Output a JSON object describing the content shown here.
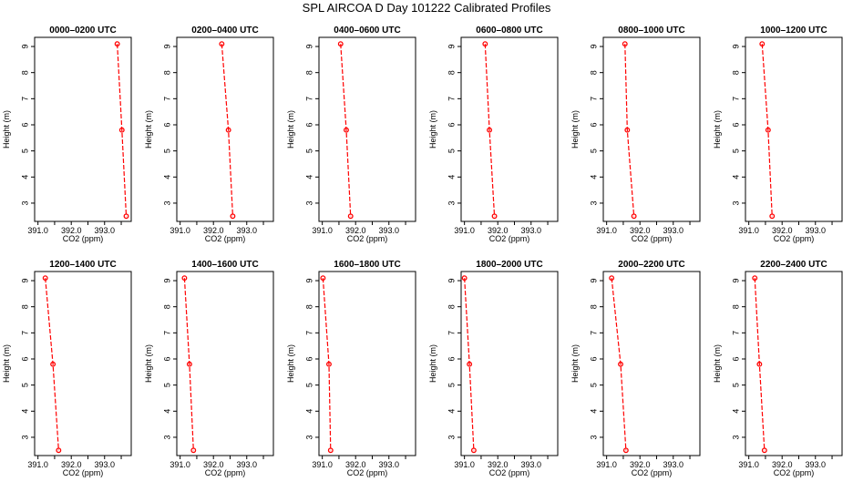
{
  "title": "SPL AIRCOA D  Day 101222  Calibrated Profiles",
  "chart_data": {
    "type": "line",
    "xlabel": "CO2 (ppm)",
    "ylabel": "Height (m)",
    "xlim": [
      390.9,
      393.8
    ],
    "ylim": [
      2.3,
      9.35
    ],
    "x_ticks": [
      391.0,
      391.5,
      392.0,
      392.5,
      393.0,
      393.5
    ],
    "x_tick_labels": [
      "391.0",
      "",
      "392.0",
      "",
      "393.0",
      ""
    ],
    "y_ticks": [
      3,
      4,
      5,
      6,
      7,
      8,
      9
    ],
    "y_tick_labels": [
      "3",
      "4",
      "5",
      "6",
      "7",
      "8",
      "9"
    ],
    "series_color": "#ff0000",
    "panels": [
      {
        "title": "0000–0200 UTC",
        "points": [
          {
            "co2": 393.38,
            "height": 9.1
          },
          {
            "co2": 393.52,
            "height": 5.8
          },
          {
            "co2": 393.65,
            "height": 2.5
          }
        ]
      },
      {
        "title": "0200–0400 UTC",
        "points": [
          {
            "co2": 392.25,
            "height": 9.1
          },
          {
            "co2": 392.45,
            "height": 5.8
          },
          {
            "co2": 392.58,
            "height": 2.5
          }
        ]
      },
      {
        "title": "0400–0600 UTC",
        "points": [
          {
            "co2": 391.55,
            "height": 9.1
          },
          {
            "co2": 391.72,
            "height": 5.8
          },
          {
            "co2": 391.85,
            "height": 2.5
          }
        ]
      },
      {
        "title": "0600–0800 UTC",
        "points": [
          {
            "co2": 391.62,
            "height": 9.1
          },
          {
            "co2": 391.75,
            "height": 5.8
          },
          {
            "co2": 391.9,
            "height": 2.5
          }
        ]
      },
      {
        "title": "0800–1000 UTC",
        "points": [
          {
            "co2": 391.55,
            "height": 9.1
          },
          {
            "co2": 391.62,
            "height": 5.8
          },
          {
            "co2": 391.82,
            "height": 2.5
          }
        ]
      },
      {
        "title": "1000–1200 UTC",
        "points": [
          {
            "co2": 391.4,
            "height": 9.1
          },
          {
            "co2": 391.58,
            "height": 5.8
          },
          {
            "co2": 391.7,
            "height": 2.5
          }
        ]
      },
      {
        "title": "1200–1400 UTC",
        "points": [
          {
            "co2": 391.22,
            "height": 9.1
          },
          {
            "co2": 391.45,
            "height": 5.8
          },
          {
            "co2": 391.62,
            "height": 2.5
          }
        ]
      },
      {
        "title": "1400–1600 UTC",
        "points": [
          {
            "co2": 391.13,
            "height": 9.1
          },
          {
            "co2": 391.28,
            "height": 5.8
          },
          {
            "co2": 391.4,
            "height": 2.5
          }
        ]
      },
      {
        "title": "1600–1800 UTC",
        "points": [
          {
            "co2": 391.02,
            "height": 9.1
          },
          {
            "co2": 391.2,
            "height": 5.8
          },
          {
            "co2": 391.25,
            "height": 2.5
          }
        ]
      },
      {
        "title": "1800–2000 UTC",
        "points": [
          {
            "co2": 391.0,
            "height": 9.1
          },
          {
            "co2": 391.15,
            "height": 5.8
          },
          {
            "co2": 391.28,
            "height": 2.5
          }
        ]
      },
      {
        "title": "2000–2200 UTC",
        "points": [
          {
            "co2": 391.15,
            "height": 9.1
          },
          {
            "co2": 391.42,
            "height": 5.8
          },
          {
            "co2": 391.58,
            "height": 2.5
          }
        ]
      },
      {
        "title": "2200–2400 UTC",
        "points": [
          {
            "co2": 391.18,
            "height": 9.1
          },
          {
            "co2": 391.32,
            "height": 5.8
          },
          {
            "co2": 391.47,
            "height": 2.5
          }
        ]
      }
    ]
  }
}
